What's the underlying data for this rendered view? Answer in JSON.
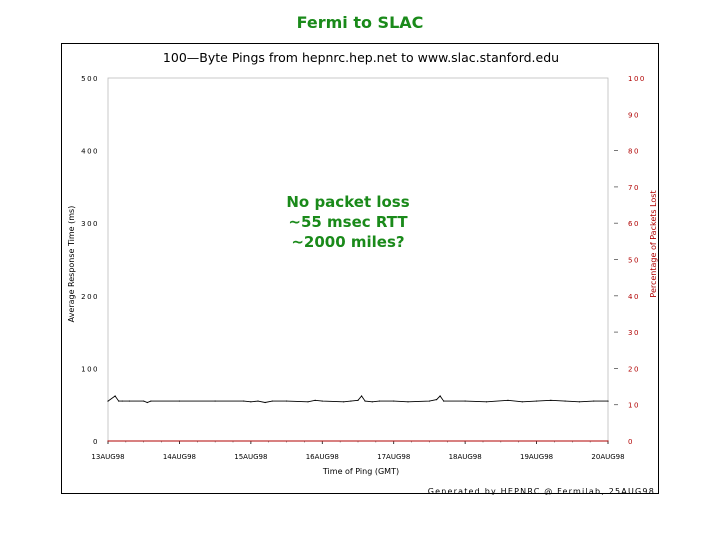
{
  "slide": {
    "title": "Fermi to SLAC",
    "notes": [
      "No packet loss",
      "~55 msec RTT",
      "~2000 miles?"
    ]
  },
  "colors": {
    "title": "#1a8a1a",
    "note": "#1a8a1a",
    "rtt_series": "#000000",
    "loss_axis": "#b00000"
  },
  "chart_data": {
    "type": "line",
    "title": "100—Byte Pings from hepnrc.hep.net to www.slac.stanford.edu",
    "xlabel": "Time of Ping (GMT)",
    "ylabel": "Average Response Time (ms)",
    "y2label": "Percentage of Packets Lost",
    "footer": "Generated by HEPNRC @ Fermilab, 25AUG98",
    "ylim": [
      0,
      500
    ],
    "y2lim": [
      0,
      100
    ],
    "xlim": [
      0,
      7
    ],
    "yticks": [
      0,
      100,
      200,
      300,
      400,
      500
    ],
    "y2ticks": [
      0,
      10,
      20,
      30,
      40,
      50,
      60,
      70,
      80,
      90,
      100
    ],
    "xticks": [
      {
        "x": 0,
        "label": "13AUG98"
      },
      {
        "x": 1,
        "label": "14AUG98"
      },
      {
        "x": 2,
        "label": "15AUG98"
      },
      {
        "x": 3,
        "label": "16AUG98"
      },
      {
        "x": 4,
        "label": "17AUG98"
      },
      {
        "x": 5,
        "label": "18AUG98"
      },
      {
        "x": 6,
        "label": "19AUG98"
      },
      {
        "x": 7,
        "label": "20AUG98"
      }
    ],
    "grid": false,
    "series": [
      {
        "axis": "left",
        "x": [
          0.0,
          0.1,
          0.15,
          0.2,
          0.3,
          0.5,
          0.55,
          0.6,
          1.0,
          1.5,
          1.9,
          2.0,
          2.1,
          2.2,
          2.3,
          2.5,
          2.8,
          2.9,
          3.0,
          3.3,
          3.4,
          3.5,
          3.55,
          3.6,
          3.7,
          3.8,
          4.0,
          4.2,
          4.5,
          4.6,
          4.65,
          4.7,
          5.0,
          5.3,
          5.6,
          5.8,
          6.0,
          6.2,
          6.4,
          6.6,
          6.8,
          7.0
        ],
        "y": [
          55,
          62,
          55,
          55,
          55,
          55,
          53,
          55,
          55,
          55,
          55,
          54,
          55,
          53,
          55,
          55,
          54,
          56,
          55,
          54,
          55,
          56,
          62,
          55,
          54,
          55,
          55,
          54,
          55,
          57,
          62,
          55,
          55,
          54,
          56,
          54,
          55,
          56,
          55,
          54,
          55,
          55
        ]
      },
      {
        "axis": "right",
        "x": [
          0,
          7
        ],
        "y": [
          0,
          0
        ]
      }
    ]
  }
}
